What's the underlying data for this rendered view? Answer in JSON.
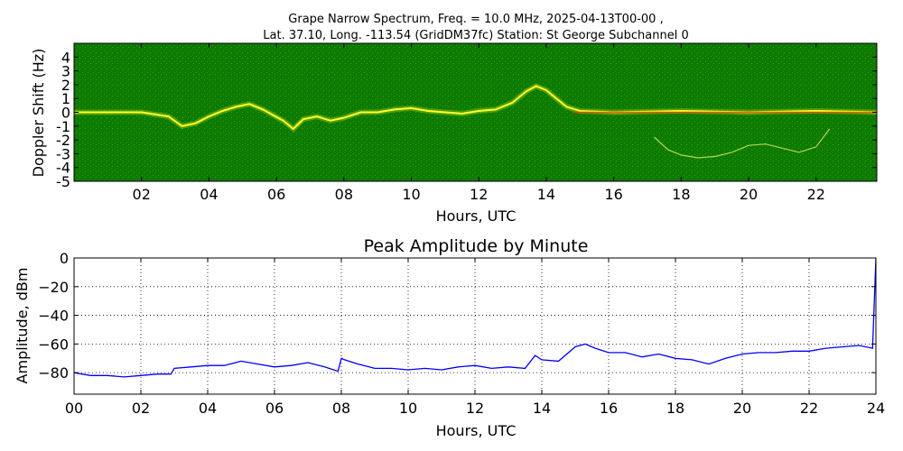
{
  "chart_data": [
    {
      "type": "heatmap",
      "title_line1": "Grape Narrow Spectrum, Freq. = 10.0 MHz, 2025-04-13T00-00 ,",
      "title_line2": "Lat.  37.10, Long. -113.54 (GridDM37fc) Station: St George Subchannel 0",
      "xlabel": "Hours, UTC",
      "ylabel": "Doppler Shift (Hz)",
      "xlim": [
        0,
        23.8
      ],
      "ylim": [
        -5,
        5
      ],
      "xticks": [
        2,
        4,
        6,
        8,
        10,
        12,
        14,
        16,
        18,
        20,
        22
      ],
      "xticklabels": [
        "02",
        "04",
        "06",
        "08",
        "10",
        "12",
        "14",
        "16",
        "18",
        "20",
        "22"
      ],
      "yticks": [
        4,
        3,
        2,
        1,
        0,
        -1,
        -2,
        -3,
        -4,
        -5
      ],
      "yticklabels": [
        "4",
        "3",
        "2",
        "1",
        "0",
        "-1",
        "-2",
        "-3",
        "-4",
        "-5"
      ],
      "background_color": "#0d7a00",
      "trace_color": "#ffff33",
      "carrier_color": "#ff3300",
      "main_trace": {
        "x": [
          0,
          1,
          2,
          2.8,
          3.2,
          3.6,
          4.0,
          4.4,
          4.8,
          5.2,
          5.6,
          5.9,
          6.2,
          6.5,
          6.8,
          7.2,
          7.6,
          8.0,
          8.5,
          9.0,
          9.5,
          10.0,
          10.5,
          11.0,
          11.5,
          12.0,
          12.5,
          13.0,
          13.4,
          13.7,
          14.0,
          14.3,
          14.6,
          15.0,
          16,
          17,
          18,
          19,
          20,
          21,
          22,
          23,
          23.8
        ],
        "y": [
          0,
          0,
          0,
          -0.3,
          -1.0,
          -0.8,
          -0.3,
          0.1,
          0.4,
          0.6,
          0.2,
          -0.2,
          -0.6,
          -1.2,
          -0.5,
          -0.3,
          -0.6,
          -0.4,
          0.0,
          0.0,
          0.2,
          0.3,
          0.1,
          0.0,
          -0.1,
          0.1,
          0.2,
          0.7,
          1.5,
          1.9,
          1.6,
          1.0,
          0.4,
          0.1,
          0.0,
          0.05,
          0.1,
          0.05,
          0.0,
          0.05,
          0.1,
          0.05,
          0.0
        ]
      },
      "secondary_trace": {
        "x": [
          17.2,
          17.6,
          18.0,
          18.5,
          19.0,
          19.5,
          20.0,
          20.5,
          21.0,
          21.5,
          22.0,
          22.4
        ],
        "y": [
          -1.8,
          -2.7,
          -3.1,
          -3.3,
          -3.2,
          -2.9,
          -2.4,
          -2.3,
          -2.6,
          -2.9,
          -2.5,
          -1.2
        ]
      },
      "grid": false
    },
    {
      "type": "line",
      "title": "Peak Amplitude by Minute",
      "xlabel": "Hours, UTC",
      "ylabel": "Amplitude, dBm",
      "xlim": [
        0,
        24
      ],
      "ylim": [
        -95,
        0
      ],
      "xticks": [
        0,
        2,
        4,
        6,
        8,
        10,
        12,
        14,
        16,
        18,
        20,
        22,
        24
      ],
      "xticklabels": [
        "00",
        "02",
        "04",
        "06",
        "08",
        "10",
        "12",
        "14",
        "16",
        "18",
        "20",
        "22",
        "24"
      ],
      "yticks": [
        0,
        -20,
        -40,
        -60,
        -80
      ],
      "yticklabels": [
        "0",
        "−20",
        "−40",
        "−60",
        "−80"
      ],
      "grid": true,
      "line_color": "#0000ff",
      "series": [
        {
          "x": [
            0,
            0.5,
            1,
            1.5,
            2,
            2.5,
            2.9,
            3.0,
            3.5,
            4,
            4.5,
            5,
            5.5,
            6,
            6.5,
            7,
            7.5,
            7.9,
            8.0,
            8.1,
            8.5,
            9,
            9.5,
            10,
            10.5,
            11,
            11.5,
            12,
            12.5,
            13,
            13.5,
            13.8,
            14,
            14.5,
            15,
            15.3,
            15.6,
            16,
            16.5,
            17,
            17.5,
            18,
            18.5,
            19,
            19.5,
            20,
            20.5,
            21,
            21.5,
            22,
            22.5,
            23,
            23.5,
            23.9,
            24
          ],
          "y": [
            -80,
            -82,
            -82,
            -83,
            -82,
            -81,
            -81,
            -77,
            -76,
            -75,
            -75,
            -72,
            -74,
            -76,
            -75,
            -73,
            -76,
            -79,
            -70,
            -71,
            -74,
            -77,
            -77,
            -78,
            -77,
            -78,
            -76,
            -75,
            -77,
            -76,
            -77,
            -68,
            -71,
            -72,
            -62,
            -60,
            -63,
            -66,
            -66,
            -69,
            -67,
            -70,
            -71,
            -74,
            -70,
            -67,
            -66,
            -66,
            -65,
            -65,
            -63,
            -62,
            -61,
            -63,
            0
          ]
        }
      ]
    }
  ]
}
